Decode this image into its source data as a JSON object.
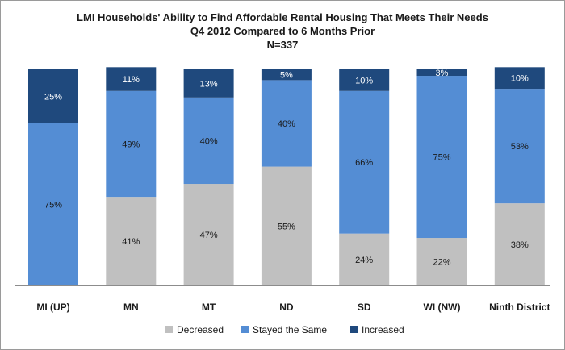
{
  "chart_data": {
    "type": "bar",
    "stacked": true,
    "percent_stacked": true,
    "title": "LMI Households' Ability to Find Affordable Rental Housing That Meets Their Needs",
    "subtitle": "Q4 2012 Compared to 6 Months Prior",
    "note": "N=337",
    "categories": [
      "MI (UP)",
      "MN",
      "MT",
      "ND",
      "SD",
      "WI (NW)",
      "Ninth District"
    ],
    "series": [
      {
        "name": "Decreased",
        "color": "#c0c0c0",
        "values": [
          0,
          41,
          47,
          55,
          24,
          22,
          38
        ],
        "labels": [
          "",
          "41%",
          "47%",
          "55%",
          "24%",
          "22%",
          "38%"
        ]
      },
      {
        "name": "Stayed the Same",
        "color": "#548dd4",
        "values": [
          75,
          49,
          40,
          40,
          66,
          75,
          53
        ],
        "labels": [
          "75%",
          "49%",
          "40%",
          "40%",
          "66%",
          "75%",
          "53%"
        ]
      },
      {
        "name": "Increased",
        "color": "#1f497d",
        "values": [
          25,
          11,
          13,
          5,
          10,
          3,
          10
        ],
        "labels": [
          "25%",
          "11%",
          "13%",
          "5%",
          "10%",
          "3%",
          "10%"
        ]
      }
    ],
    "ylim": [
      0,
      100
    ],
    "legend_position": "bottom",
    "grid": false
  }
}
